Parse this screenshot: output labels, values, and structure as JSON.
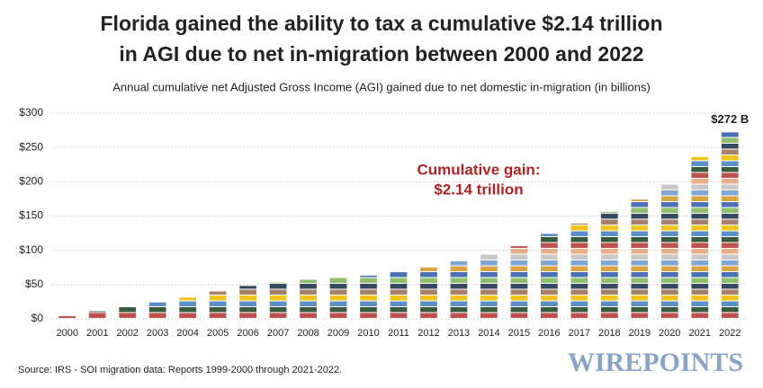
{
  "chart_data": {
    "type": "bar",
    "title": [
      "Florida gained the ability to tax a cumulative $2.14 trillion",
      "in AGI due to net in-migration between 2000 and 2022"
    ],
    "subtitle": "Annual cumulative net Adjusted Gross Income (AGI) gained due to net domestic in-migration (in billions)",
    "categories": [
      "2000",
      "2001",
      "2002",
      "2003",
      "2004",
      "2005",
      "2006",
      "2007",
      "2008",
      "2009",
      "2010",
      "2011",
      "2012",
      "2013",
      "2014",
      "2015",
      "2016",
      "2017",
      "2018",
      "2019",
      "2020",
      "2021",
      "2022"
    ],
    "values": [
      4,
      11,
      17,
      24,
      31,
      40,
      48,
      53,
      57,
      60,
      63,
      68,
      75,
      84,
      94,
      106,
      124,
      139,
      156,
      174,
      196,
      236,
      272
    ],
    "value_labels": [
      null,
      null,
      null,
      null,
      null,
      null,
      null,
      null,
      null,
      null,
      null,
      null,
      null,
      null,
      null,
      null,
      null,
      null,
      null,
      null,
      null,
      null,
      "$272 B"
    ],
    "segment_colors": [
      "#e8b08a",
      "#c9c9c9",
      "#7fa7d6",
      "#d9a441",
      "#4a6fb5",
      "#8fbf6a",
      "#34495e",
      "#a6806a",
      "#f0c419",
      "#5b8fc7",
      "#3a5a40",
      "#c0504d"
    ],
    "annotation": [
      "Cumulative gain:",
      "$2.14 trillion"
    ],
    "source": "Source: IRS - SOI migration data: Reports 1999-2000 through 2021-2022.",
    "watermark": "WIREPOINTS",
    "ylim": [
      0,
      300
    ],
    "yticks": [
      {
        "value": 0,
        "label": "$0"
      },
      {
        "value": 50,
        "label": "$50"
      },
      {
        "value": 100,
        "label": "$100"
      },
      {
        "value": 150,
        "label": "$150"
      },
      {
        "value": 200,
        "label": "$200"
      },
      {
        "value": 250,
        "label": "$250"
      },
      {
        "value": 300,
        "label": "$300"
      }
    ],
    "grid": true
  }
}
